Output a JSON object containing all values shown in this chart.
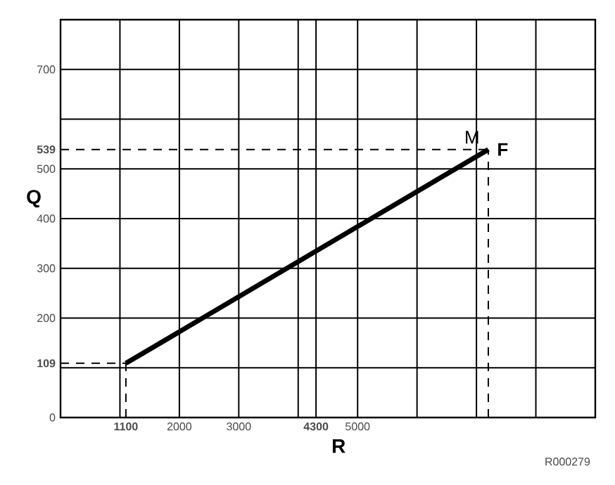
{
  "chart_data": {
    "type": "line",
    "xlabel": "R",
    "ylabel": "Q",
    "x": [
      1100,
      7200
    ],
    "series": [
      {
        "color": "#000000",
        "values": [
          109,
          539
        ]
      }
    ],
    "xlim": [
      0,
      9000
    ],
    "xticks": [
      {
        "value": 1000,
        "label": null
      },
      {
        "value": 1100,
        "label": "**1100**"
      },
      2000,
      3000,
      {
        "value": 4000,
        "label": null
      },
      {
        "value": 4300,
        "label": "**4300**"
      },
      5000,
      {
        "value": 6000,
        "label": null
      },
      {
        "value": 7000,
        "label": null
      },
      {
        "value": 8000,
        "label": null
      }
    ],
    "ylim": [
      0,
      800
    ],
    "yticks": [
      0,
      {
        "value": 100,
        "label": null
      },
      {
        "value": 109,
        "label": "**109**"
      },
      200,
      300,
      400,
      500,
      {
        "value": 539,
        "label": "**539**"
      },
      {
        "value": 600,
        "label": null
      },
      700
    ],
    "grid": true,
    "marker": "none",
    "line_style": "solid",
    "ref_lines": [
      {
        "axis": "y",
        "value": 109,
        "line_style": "dashed"
      },
      {
        "axis": "y",
        "value": 539,
        "line_style": "dashed"
      },
      {
        "axis": "x",
        "value": 1100,
        "line_style": "dashed"
      },
      {
        "axis": "x",
        "value": 7200,
        "line_style": "dashed"
      }
    ],
    "annotations": [
      {
        "text": "M",
        "x": 7200,
        "y": 539
      },
      {
        "text": "F",
        "x": 7200,
        "y": 539
      },
      "R000279"
    ]
  }
}
